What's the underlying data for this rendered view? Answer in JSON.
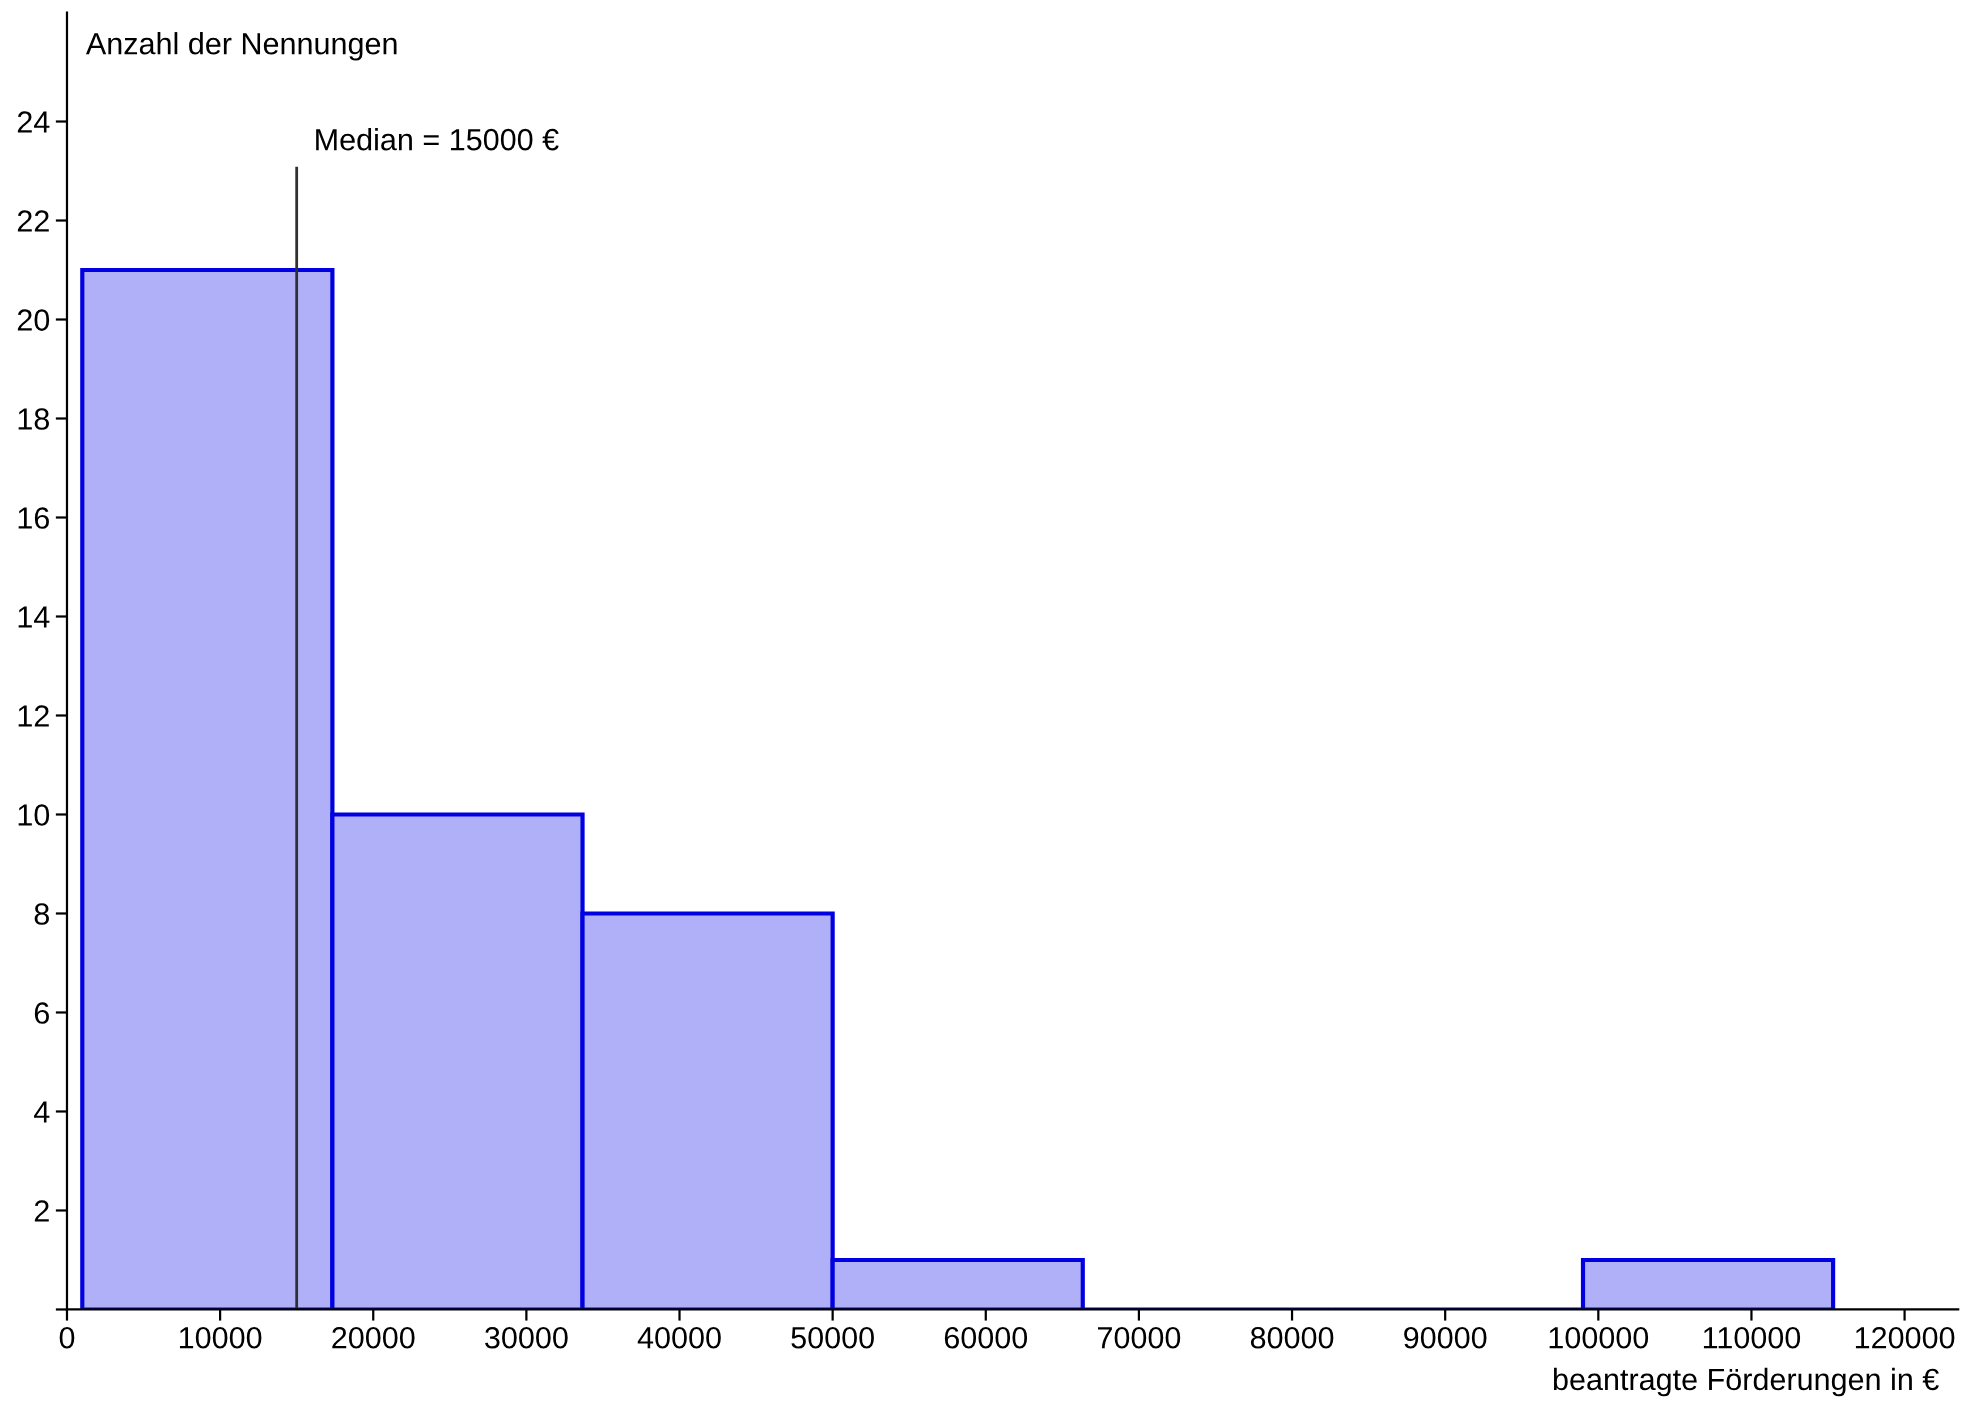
{
  "chart_data": {
    "type": "histogram",
    "xlabel": "beantragte Förderungen in €",
    "ylabel": "Anzahl der Nennungen",
    "bins": [
      1000,
      17333,
      33667,
      50000,
      66333,
      82667,
      99000,
      115333
    ],
    "values": [
      21,
      10,
      8,
      1,
      0,
      0,
      1
    ],
    "color": "#b0b0f8",
    "xlim": [
      0,
      123500
    ],
    "ylim": [
      0,
      26.2
    ],
    "xticks": [
      0,
      10000,
      20000,
      30000,
      40000,
      50000,
      60000,
      70000,
      80000,
      90000,
      100000,
      110000,
      120000
    ],
    "yticks": [
      {
        "value": 0,
        "label": null
      },
      2,
      4,
      6,
      8,
      10,
      12,
      14,
      16,
      18,
      20,
      22,
      24
    ],
    "ref_lines": [
      {
        "axis": "x",
        "value": 15000,
        "label": "Median = 15000 €",
        "color": "#303030"
      }
    ],
    "grid": false,
    "legend": false
  }
}
